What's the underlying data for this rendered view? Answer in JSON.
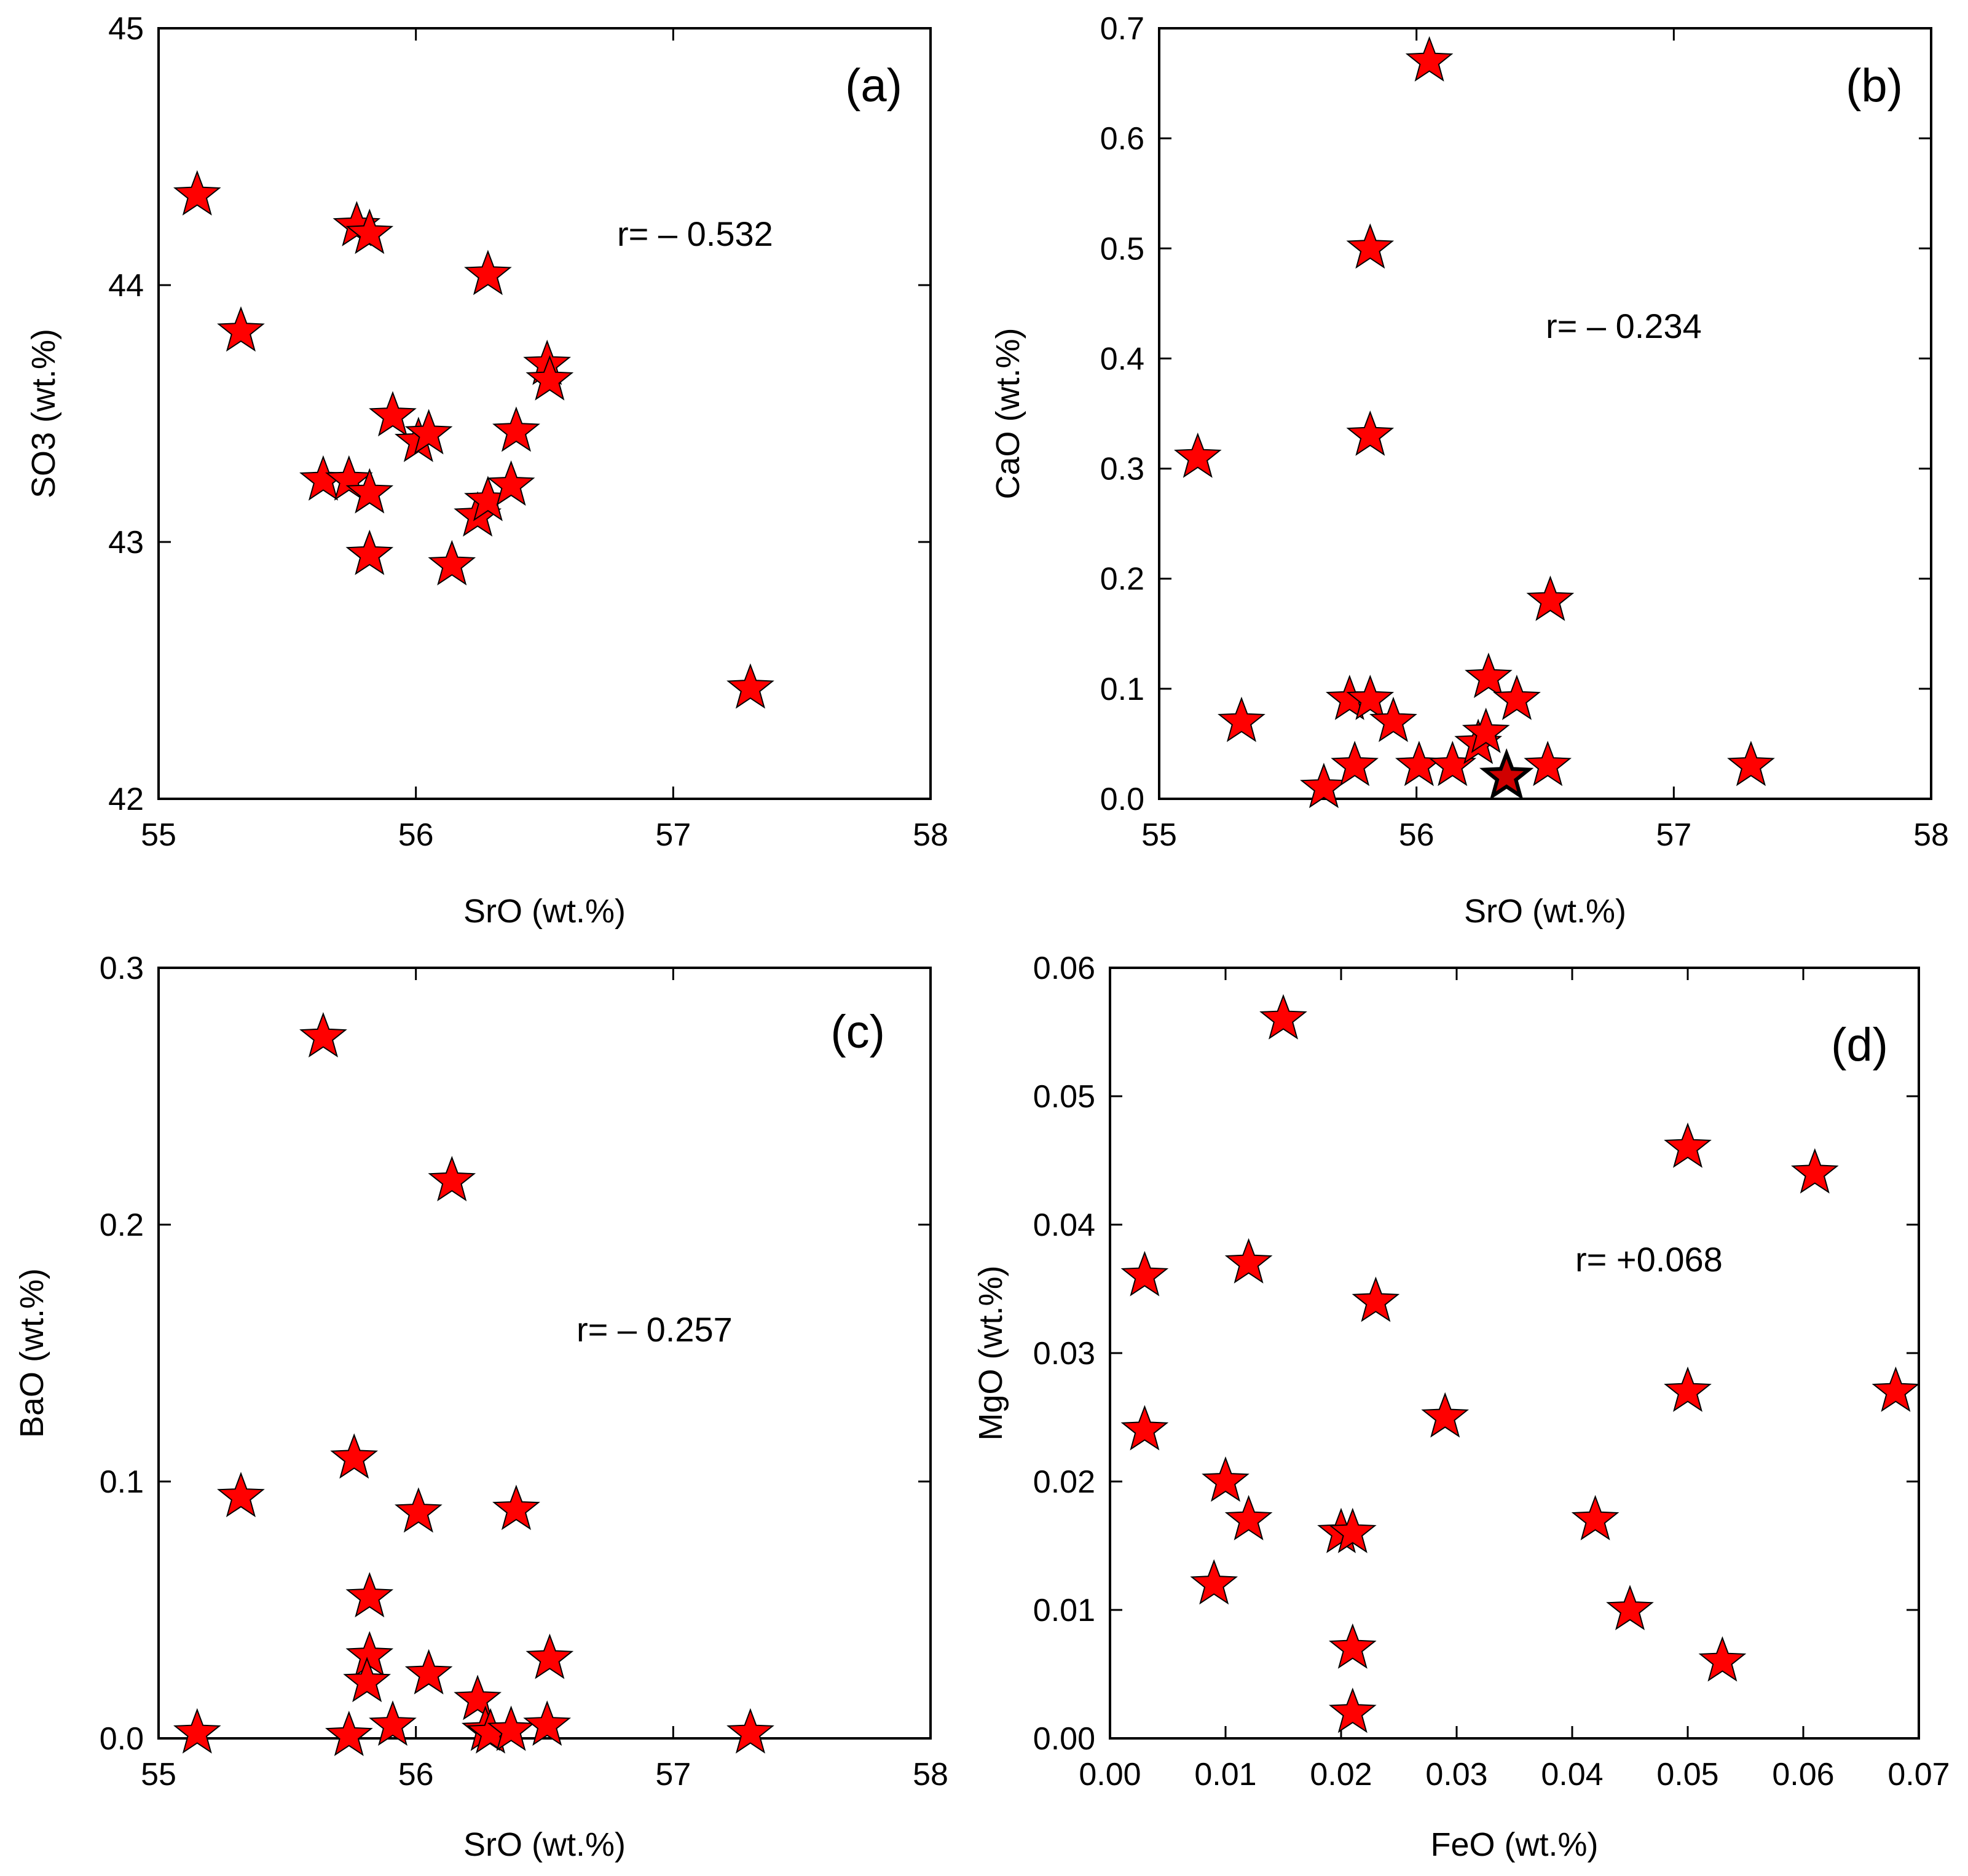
{
  "chart_data": [
    {
      "type": "scatter",
      "panel_label": "(a)",
      "annotation": "r= – 0.532",
      "xlabel": "SrO (wt.%)",
      "ylabel": "SO3 (wt.%)",
      "xlim": [
        55,
        58
      ],
      "ylim": [
        42,
        45
      ],
      "x_ticks": [
        "55",
        "56",
        "57",
        "58"
      ],
      "y_ticks": [
        "42",
        "43",
        "44",
        "45"
      ],
      "grid": false,
      "marker": "star",
      "marker_color": "#ff0000",
      "points": [
        {
          "x": 55.15,
          "y": 44.35
        },
        {
          "x": 55.32,
          "y": 43.82
        },
        {
          "x": 55.64,
          "y": 43.24
        },
        {
          "x": 55.74,
          "y": 43.24
        },
        {
          "x": 55.77,
          "y": 44.23
        },
        {
          "x": 55.82,
          "y": 44.2
        },
        {
          "x": 55.82,
          "y": 43.19
        },
        {
          "x": 55.82,
          "y": 42.95
        },
        {
          "x": 55.91,
          "y": 43.49
        },
        {
          "x": 56.01,
          "y": 43.39
        },
        {
          "x": 56.05,
          "y": 43.42
        },
        {
          "x": 56.14,
          "y": 42.91
        },
        {
          "x": 56.24,
          "y": 43.1
        },
        {
          "x": 56.28,
          "y": 43.16
        },
        {
          "x": 56.28,
          "y": 44.04
        },
        {
          "x": 56.37,
          "y": 43.22
        },
        {
          "x": 56.39,
          "y": 43.43
        },
        {
          "x": 56.51,
          "y": 43.69
        },
        {
          "x": 56.52,
          "y": 43.63
        },
        {
          "x": 57.3,
          "y": 42.43
        }
      ]
    },
    {
      "type": "scatter",
      "panel_label": "(b)",
      "annotation": "r= – 0.234",
      "xlabel": "SrO (wt.%)",
      "ylabel": "CaO (wt.%)",
      "xlim": [
        55,
        58
      ],
      "ylim": [
        0,
        0.7
      ],
      "x_ticks": [
        "55",
        "56",
        "57",
        "58"
      ],
      "y_ticks": [
        "0.0",
        "0.1",
        "0.2",
        "0.3",
        "0.4",
        "0.5",
        "0.6",
        "0.7"
      ],
      "grid": false,
      "marker": "star",
      "marker_color": "#ff0000",
      "highlight_color": "#d00000",
      "points": [
        {
          "x": 55.15,
          "y": 0.31
        },
        {
          "x": 55.32,
          "y": 0.07
        },
        {
          "x": 55.64,
          "y": 0.01
        },
        {
          "x": 55.74,
          "y": 0.09
        },
        {
          "x": 55.76,
          "y": 0.03
        },
        {
          "x": 55.82,
          "y": 0.09
        },
        {
          "x": 55.82,
          "y": 0.5
        },
        {
          "x": 55.82,
          "y": 0.33
        },
        {
          "x": 55.91,
          "y": 0.07
        },
        {
          "x": 56.01,
          "y": 0.03
        },
        {
          "x": 56.05,
          "y": 0.67
        },
        {
          "x": 56.14,
          "y": 0.03
        },
        {
          "x": 56.24,
          "y": 0.05
        },
        {
          "x": 56.27,
          "y": 0.06
        },
        {
          "x": 56.28,
          "y": 0.11
        },
        {
          "x": 56.35,
          "y": 0.02,
          "highlight": true
        },
        {
          "x": 56.39,
          "y": 0.09
        },
        {
          "x": 56.51,
          "y": 0.03
        },
        {
          "x": 56.52,
          "y": 0.18
        },
        {
          "x": 57.3,
          "y": 0.03
        }
      ]
    },
    {
      "type": "scatter",
      "panel_label": "(c)",
      "annotation": "r= – 0.257",
      "xlabel": "SrO (wt.%)",
      "ylabel": "BaO (wt.%)",
      "xlim": [
        55,
        58
      ],
      "ylim": [
        0,
        0.3
      ],
      "x_ticks": [
        "55",
        "56",
        "57",
        "58"
      ],
      "y_ticks": [
        "0.0",
        "0.1",
        "0.2",
        "0.3"
      ],
      "grid": false,
      "marker": "star",
      "marker_color": "#ff0000",
      "points": [
        {
          "x": 55.15,
          "y": 0.002
        },
        {
          "x": 55.32,
          "y": 0.094
        },
        {
          "x": 55.64,
          "y": 0.273
        },
        {
          "x": 55.74,
          "y": 0.001
        },
        {
          "x": 55.76,
          "y": 0.109
        },
        {
          "x": 55.82,
          "y": 0.055
        },
        {
          "x": 55.82,
          "y": 0.032
        },
        {
          "x": 55.81,
          "y": 0.022
        },
        {
          "x": 55.91,
          "y": 0.005
        },
        {
          "x": 56.01,
          "y": 0.088
        },
        {
          "x": 56.05,
          "y": 0.025
        },
        {
          "x": 56.14,
          "y": 0.217
        },
        {
          "x": 56.24,
          "y": 0.015
        },
        {
          "x": 56.27,
          "y": 0.003
        },
        {
          "x": 56.29,
          "y": 0.002
        },
        {
          "x": 56.37,
          "y": 0.003
        },
        {
          "x": 56.39,
          "y": 0.089
        },
        {
          "x": 56.51,
          "y": 0.005
        },
        {
          "x": 56.52,
          "y": 0.031
        },
        {
          "x": 57.3,
          "y": 0.002
        }
      ]
    },
    {
      "type": "scatter",
      "panel_label": "(d)",
      "annotation": "r= +0.068",
      "xlabel": "FeO (wt.%)",
      "ylabel": "MgO (wt.%)",
      "xlim": [
        0,
        0.07
      ],
      "ylim": [
        0,
        0.06
      ],
      "x_ticks": [
        "0.00",
        "0.01",
        "0.02",
        "0.03",
        "0.04",
        "0.05",
        "0.06",
        "0.07"
      ],
      "y_ticks": [
        "0.00",
        "0.01",
        "0.02",
        "0.03",
        "0.04",
        "0.05",
        "0.06"
      ],
      "grid": false,
      "marker": "star",
      "marker_color": "#ff0000",
      "points": [
        {
          "x": 0.003,
          "y": 0.036
        },
        {
          "x": 0.003,
          "y": 0.024
        },
        {
          "x": 0.009,
          "y": 0.012
        },
        {
          "x": 0.01,
          "y": 0.02
        },
        {
          "x": 0.012,
          "y": 0.037
        },
        {
          "x": 0.012,
          "y": 0.017
        },
        {
          "x": 0.015,
          "y": 0.056
        },
        {
          "x": 0.02,
          "y": 0.016
        },
        {
          "x": 0.021,
          "y": 0.016
        },
        {
          "x": 0.021,
          "y": 0.007
        },
        {
          "x": 0.021,
          "y": 0.002
        },
        {
          "x": 0.023,
          "y": 0.034
        },
        {
          "x": 0.029,
          "y": 0.025
        },
        {
          "x": 0.042,
          "y": 0.017
        },
        {
          "x": 0.045,
          "y": 0.01
        },
        {
          "x": 0.05,
          "y": 0.046
        },
        {
          "x": 0.05,
          "y": 0.027
        },
        {
          "x": 0.053,
          "y": 0.006
        },
        {
          "x": 0.061,
          "y": 0.044
        },
        {
          "x": 0.068,
          "y": 0.027
        }
      ]
    }
  ]
}
